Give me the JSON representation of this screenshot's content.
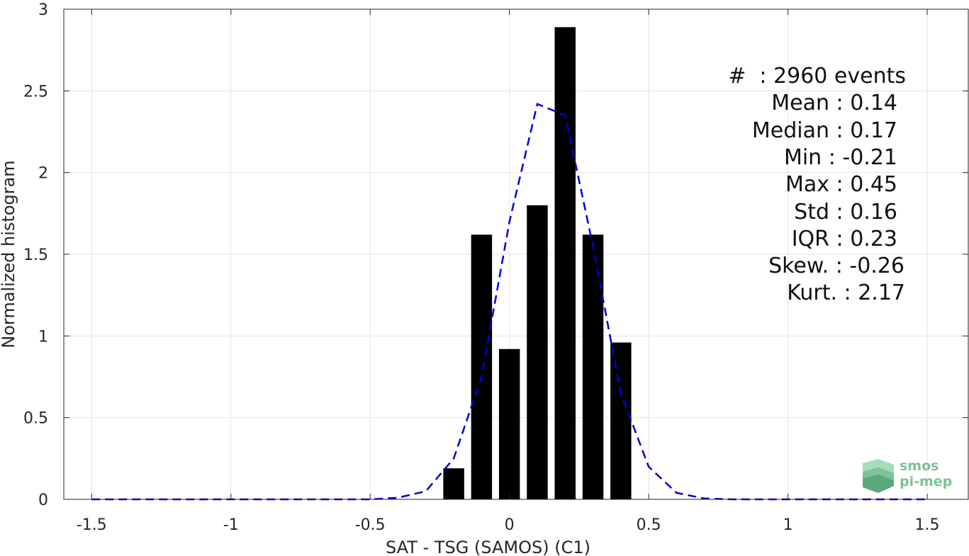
{
  "chart_data": {
    "type": "bar",
    "xlabel": "SAT - TSG (SAMOS) (C1)",
    "ylabel": "Normalized histogram",
    "xlim": [
      -1.6,
      1.65
    ],
    "ylim": [
      0,
      3
    ],
    "grid": true,
    "x_ticks": [
      -1.5,
      -1,
      -0.5,
      0,
      0.5,
      1,
      1.5
    ],
    "x_tick_labels": [
      "-1.5",
      "-1",
      "-0.5",
      "0",
      "0.5",
      "1",
      "1.5"
    ],
    "y_ticks": [
      0,
      0.5,
      1,
      1.5,
      2,
      2.5,
      3
    ],
    "y_tick_labels": [
      "0",
      "0.5",
      "1",
      "1.5",
      "2",
      "2.5",
      "3"
    ],
    "bars": {
      "x": [
        -0.2,
        -0.1,
        0.0,
        0.1,
        0.2,
        0.3,
        0.4
      ],
      "values": [
        0.19,
        1.62,
        0.92,
        1.8,
        2.89,
        1.62,
        0.96
      ],
      "color": "#000000"
    },
    "fit_curve": {
      "style": "dashed",
      "color": "#0000dd",
      "x": [
        -1.5,
        -1.4,
        -1.3,
        -1.2,
        -1.1,
        -1.0,
        -0.9,
        -0.8,
        -0.7,
        -0.6,
        -0.5,
        -0.4,
        -0.3,
        -0.2,
        -0.1,
        0.0,
        0.1,
        0.2,
        0.3,
        0.4,
        0.5,
        0.6,
        0.7,
        0.8,
        0.9,
        1.0,
        1.1,
        1.2,
        1.3,
        1.4,
        1.5
      ],
      "y": [
        0,
        0,
        0,
        0,
        0,
        0,
        0,
        0,
        0,
        0,
        0,
        0.01,
        0.05,
        0.25,
        0.75,
        1.7,
        2.42,
        2.35,
        1.55,
        0.65,
        0.2,
        0.04,
        0.005,
        0,
        0,
        0,
        0,
        0,
        0,
        0,
        0
      ]
    },
    "stats": [
      {
        "label": "#  : 2960 events"
      },
      {
        "label": "Mean : 0.14"
      },
      {
        "label": "Median : 0.17"
      },
      {
        "label": "Min : -0.21"
      },
      {
        "label": "Max : 0.45"
      },
      {
        "label": "Std : 0.16"
      },
      {
        "label": "IQR : 0.23"
      },
      {
        "label": "Skew. : -0.26"
      },
      {
        "label": "Kurt. : 2.17"
      }
    ]
  },
  "logo": {
    "line1": "smos",
    "line2": "pi-mep",
    "color": "#7cc29a"
  }
}
